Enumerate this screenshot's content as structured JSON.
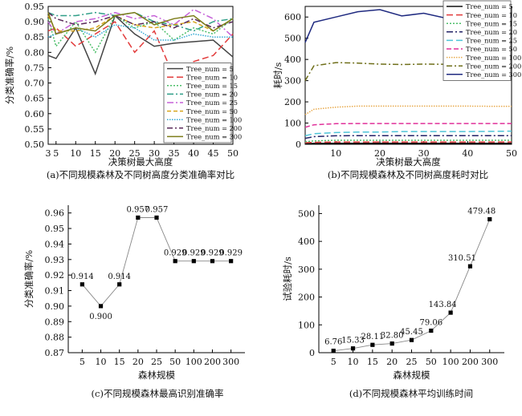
{
  "chart_data": [
    {
      "type": "line",
      "caption": "(a)不同规模森林及不同树高度分类准确率对比",
      "xlabel": "决策树最大高度",
      "ylabel": "分类准确率/%",
      "x": [
        3,
        5,
        10,
        15,
        20,
        25,
        30,
        35,
        40,
        45,
        50
      ],
      "xticks": [
        3,
        5,
        10,
        15,
        20,
        25,
        30,
        35,
        40,
        45,
        50
      ],
      "ylim": [
        0.5,
        0.95
      ],
      "yticks": [
        "0.50",
        "0.55",
        "0.60",
        "0.65",
        "0.70",
        "0.75",
        "0.80",
        "0.85",
        "0.90",
        "0.95"
      ],
      "legend_position": "bottom-right",
      "series": [
        {
          "name": "Tree_num = 5",
          "color": "#444444",
          "dash": "",
          "values": [
            0.79,
            0.78,
            0.88,
            0.73,
            0.92,
            0.86,
            0.82,
            0.83,
            0.835,
            0.84,
            0.785
          ]
        },
        {
          "name": "Tree_num = 10",
          "color": "#e23c3c",
          "dash": "8,4",
          "values": [
            0.87,
            0.88,
            0.82,
            0.86,
            0.9,
            0.8,
            0.87,
            0.72,
            0.77,
            0.79,
            0.86
          ]
        },
        {
          "name": "Tree_num = 15",
          "color": "#4cbf6a",
          "dash": "2,2",
          "values": [
            0.91,
            0.82,
            0.9,
            0.8,
            0.92,
            0.88,
            0.9,
            0.84,
            0.88,
            0.86,
            0.91
          ]
        },
        {
          "name": "Tree_num = 20",
          "color": "#2f9e88",
          "dash": "8,3,2,3",
          "values": [
            0.93,
            0.92,
            0.92,
            0.93,
            0.92,
            0.93,
            0.9,
            0.89,
            0.87,
            0.9,
            0.91
          ]
        },
        {
          "name": "Tree_num = 25",
          "color": "#c561d8",
          "dash": "8,3,2,3",
          "values": [
            0.9,
            0.86,
            0.9,
            0.91,
            0.93,
            0.91,
            0.92,
            0.89,
            0.94,
            0.91,
            0.85
          ]
        },
        {
          "name": "Tree_num = 50",
          "color": "#d8a51c",
          "dash": "5,3",
          "values": [
            0.92,
            0.87,
            0.87,
            0.88,
            0.92,
            0.89,
            0.88,
            0.89,
            0.9,
            0.87,
            0.91
          ]
        },
        {
          "name": "Tree_num = 100",
          "color": "#33a9d4",
          "dash": "1.5,1.5",
          "values": [
            0.85,
            0.86,
            0.88,
            0.85,
            0.89,
            0.88,
            0.84,
            0.84,
            0.86,
            0.85,
            0.85
          ]
        },
        {
          "name": "Tree_num = 200",
          "color": "#5a2a5a",
          "dash": "7,3,2,3",
          "values": [
            0.93,
            0.91,
            0.89,
            0.9,
            0.92,
            0.89,
            0.9,
            0.88,
            0.91,
            0.88,
            0.9
          ]
        },
        {
          "name": "Tree_num = 300",
          "color": "#7d7d1a",
          "dash": "",
          "values": [
            0.93,
            0.86,
            0.88,
            0.87,
            0.92,
            0.93,
            0.89,
            0.91,
            0.92,
            0.87,
            0.91
          ]
        }
      ]
    },
    {
      "type": "line",
      "caption": "(b)不同规模森林及不同树高度耗时对比",
      "xlabel": "决策树最大高度",
      "ylabel": "耗时/s",
      "x": [
        3,
        5,
        10,
        15,
        20,
        25,
        30,
        35,
        40,
        45,
        50
      ],
      "xticks": [
        10,
        20,
        30,
        40,
        50
      ],
      "ylim": [
        0,
        650
      ],
      "yticks": [
        0,
        100,
        200,
        300,
        400,
        500,
        600
      ],
      "legend_position": "top-right",
      "series": [
        {
          "name": "Tree_num = 5",
          "color": "#111111",
          "dash": "",
          "values": [
            3,
            4,
            5,
            5,
            5,
            5,
            5,
            5,
            5,
            5,
            5
          ]
        },
        {
          "name": "Tree_num = 10",
          "color": "#e23c3c",
          "dash": "8,4",
          "values": [
            7,
            9,
            11,
            11,
            11,
            11,
            11,
            11,
            11,
            11,
            11
          ]
        },
        {
          "name": "Tree_num = 15",
          "color": "#4cbf6a",
          "dash": "2,2",
          "values": [
            12,
            16,
            19,
            19,
            19,
            19,
            19,
            19,
            19,
            19,
            19
          ]
        },
        {
          "name": "Tree_num = 20",
          "color": "#222266",
          "dash": "8,3,2,3",
          "values": [
            28,
            36,
            40,
            41,
            41,
            41,
            41,
            41,
            41,
            41,
            41
          ]
        },
        {
          "name": "Tree_num = 25",
          "color": "#4ec4d8",
          "dash": "8,4",
          "values": [
            40,
            50,
            55,
            58,
            58,
            60,
            60,
            60,
            60,
            61,
            62
          ]
        },
        {
          "name": "Tree_num = 50",
          "color": "#e0309a",
          "dash": "6,3",
          "values": [
            80,
            92,
            97,
            98,
            98,
            98,
            98,
            98,
            98,
            98,
            98
          ]
        },
        {
          "name": "Tree_num = 100",
          "color": "#e8a94a",
          "dash": "1.5,1.5",
          "values": [
            140,
            165,
            175,
            180,
            180,
            180,
            180,
            180,
            180,
            179,
            179
          ]
        },
        {
          "name": "Tree_num = 200",
          "color": "#6f6f1a",
          "dash": "7,3,2,3",
          "values": [
            300,
            370,
            385,
            383,
            378,
            376,
            378,
            377,
            376,
            378,
            378
          ]
        },
        {
          "name": "Tree_num = 300",
          "color": "#1f2a80",
          "dash": "",
          "values": [
            480,
            575,
            600,
            625,
            635,
            605,
            618,
            595,
            610,
            580,
            600
          ]
        }
      ]
    },
    {
      "type": "line",
      "caption": "(c)不同规模森林最高识别准确率",
      "xlabel": "森林规模",
      "ylabel": "分类准确率/%",
      "categories": [
        "5",
        "10",
        "15",
        "20",
        "25",
        "50",
        "100",
        "200",
        "300"
      ],
      "values": [
        0.914,
        0.9,
        0.914,
        0.957,
        0.957,
        0.929,
        0.929,
        0.929,
        0.929
      ],
      "labels": [
        "0.914",
        "0.900",
        "0.914",
        "0.957",
        "0.957",
        "0.929",
        "0.929",
        "0.929",
        "0.929"
      ],
      "ylim": [
        0.87,
        0.965
      ],
      "yticks": [
        "0.87",
        "0.88",
        "0.89",
        "0.90",
        "0.91",
        "0.92",
        "0.93",
        "0.94",
        "0.95",
        "0.96"
      ]
    },
    {
      "type": "line",
      "caption": "(d)不同规模森林平均训练时间",
      "xlabel": "森林规模",
      "ylabel": "试验耗时/s",
      "categories": [
        "5",
        "10",
        "15",
        "20",
        "25",
        "50",
        "100",
        "200",
        "300"
      ],
      "values": [
        6.76,
        15.33,
        28.11,
        32.8,
        45.45,
        79.06,
        143.84,
        310.51,
        479.48
      ],
      "labels": [
        "6.76",
        "15.33",
        "28.11",
        "32.80",
        "45.45",
        "79.06",
        "143.84",
        "310.51",
        "479.48"
      ],
      "ylim": [
        0,
        530
      ],
      "yticks": [
        0,
        100,
        200,
        300,
        400,
        500
      ]
    }
  ]
}
